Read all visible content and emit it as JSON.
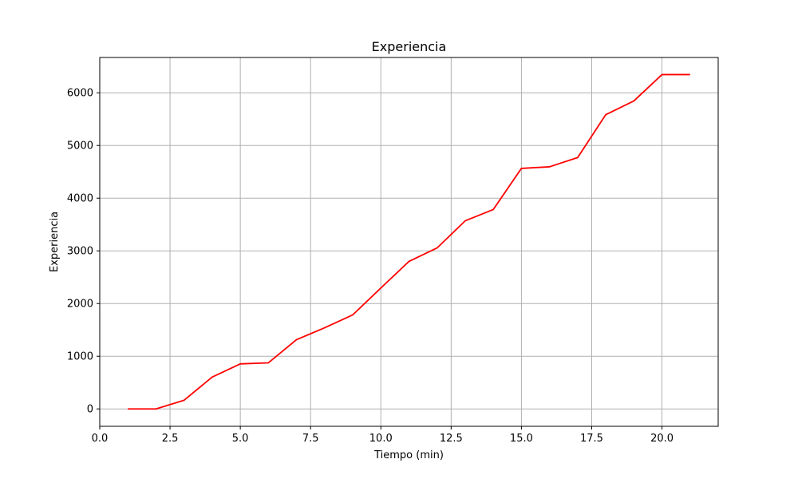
{
  "chart_data": {
    "type": "line",
    "title": "Experiencia",
    "xlabel": "Tiempo (min)",
    "ylabel": "Experiencia",
    "xlim": [
      0.0,
      22.0
    ],
    "ylim": [
      -330,
      6670
    ],
    "grid": true,
    "x_ticks": [
      0.0,
      2.5,
      5.0,
      7.5,
      10.0,
      12.5,
      15.0,
      17.5,
      20.0
    ],
    "x_tick_labels": [
      "0.0",
      "2.5",
      "5.0",
      "7.5",
      "10.0",
      "12.5",
      "15.0",
      "17.5",
      "20.0"
    ],
    "y_ticks": [
      0,
      1000,
      2000,
      3000,
      4000,
      5000,
      6000
    ],
    "y_tick_labels": [
      "0",
      "1000",
      "2000",
      "3000",
      "4000",
      "5000",
      "6000"
    ],
    "series": [
      {
        "name": "Experiencia",
        "color": "#ff0000",
        "x": [
          1,
          2,
          3,
          4,
          5,
          6,
          7,
          8,
          9,
          10,
          11,
          12,
          13,
          14,
          15,
          16,
          17,
          18,
          19,
          20,
          21
        ],
        "values": [
          0,
          0,
          165,
          605,
          855,
          875,
          1315,
          1540,
          1785,
          2295,
          2800,
          3055,
          3570,
          3785,
          4565,
          4595,
          4770,
          5585,
          5845,
          6345,
          6345
        ]
      }
    ]
  }
}
